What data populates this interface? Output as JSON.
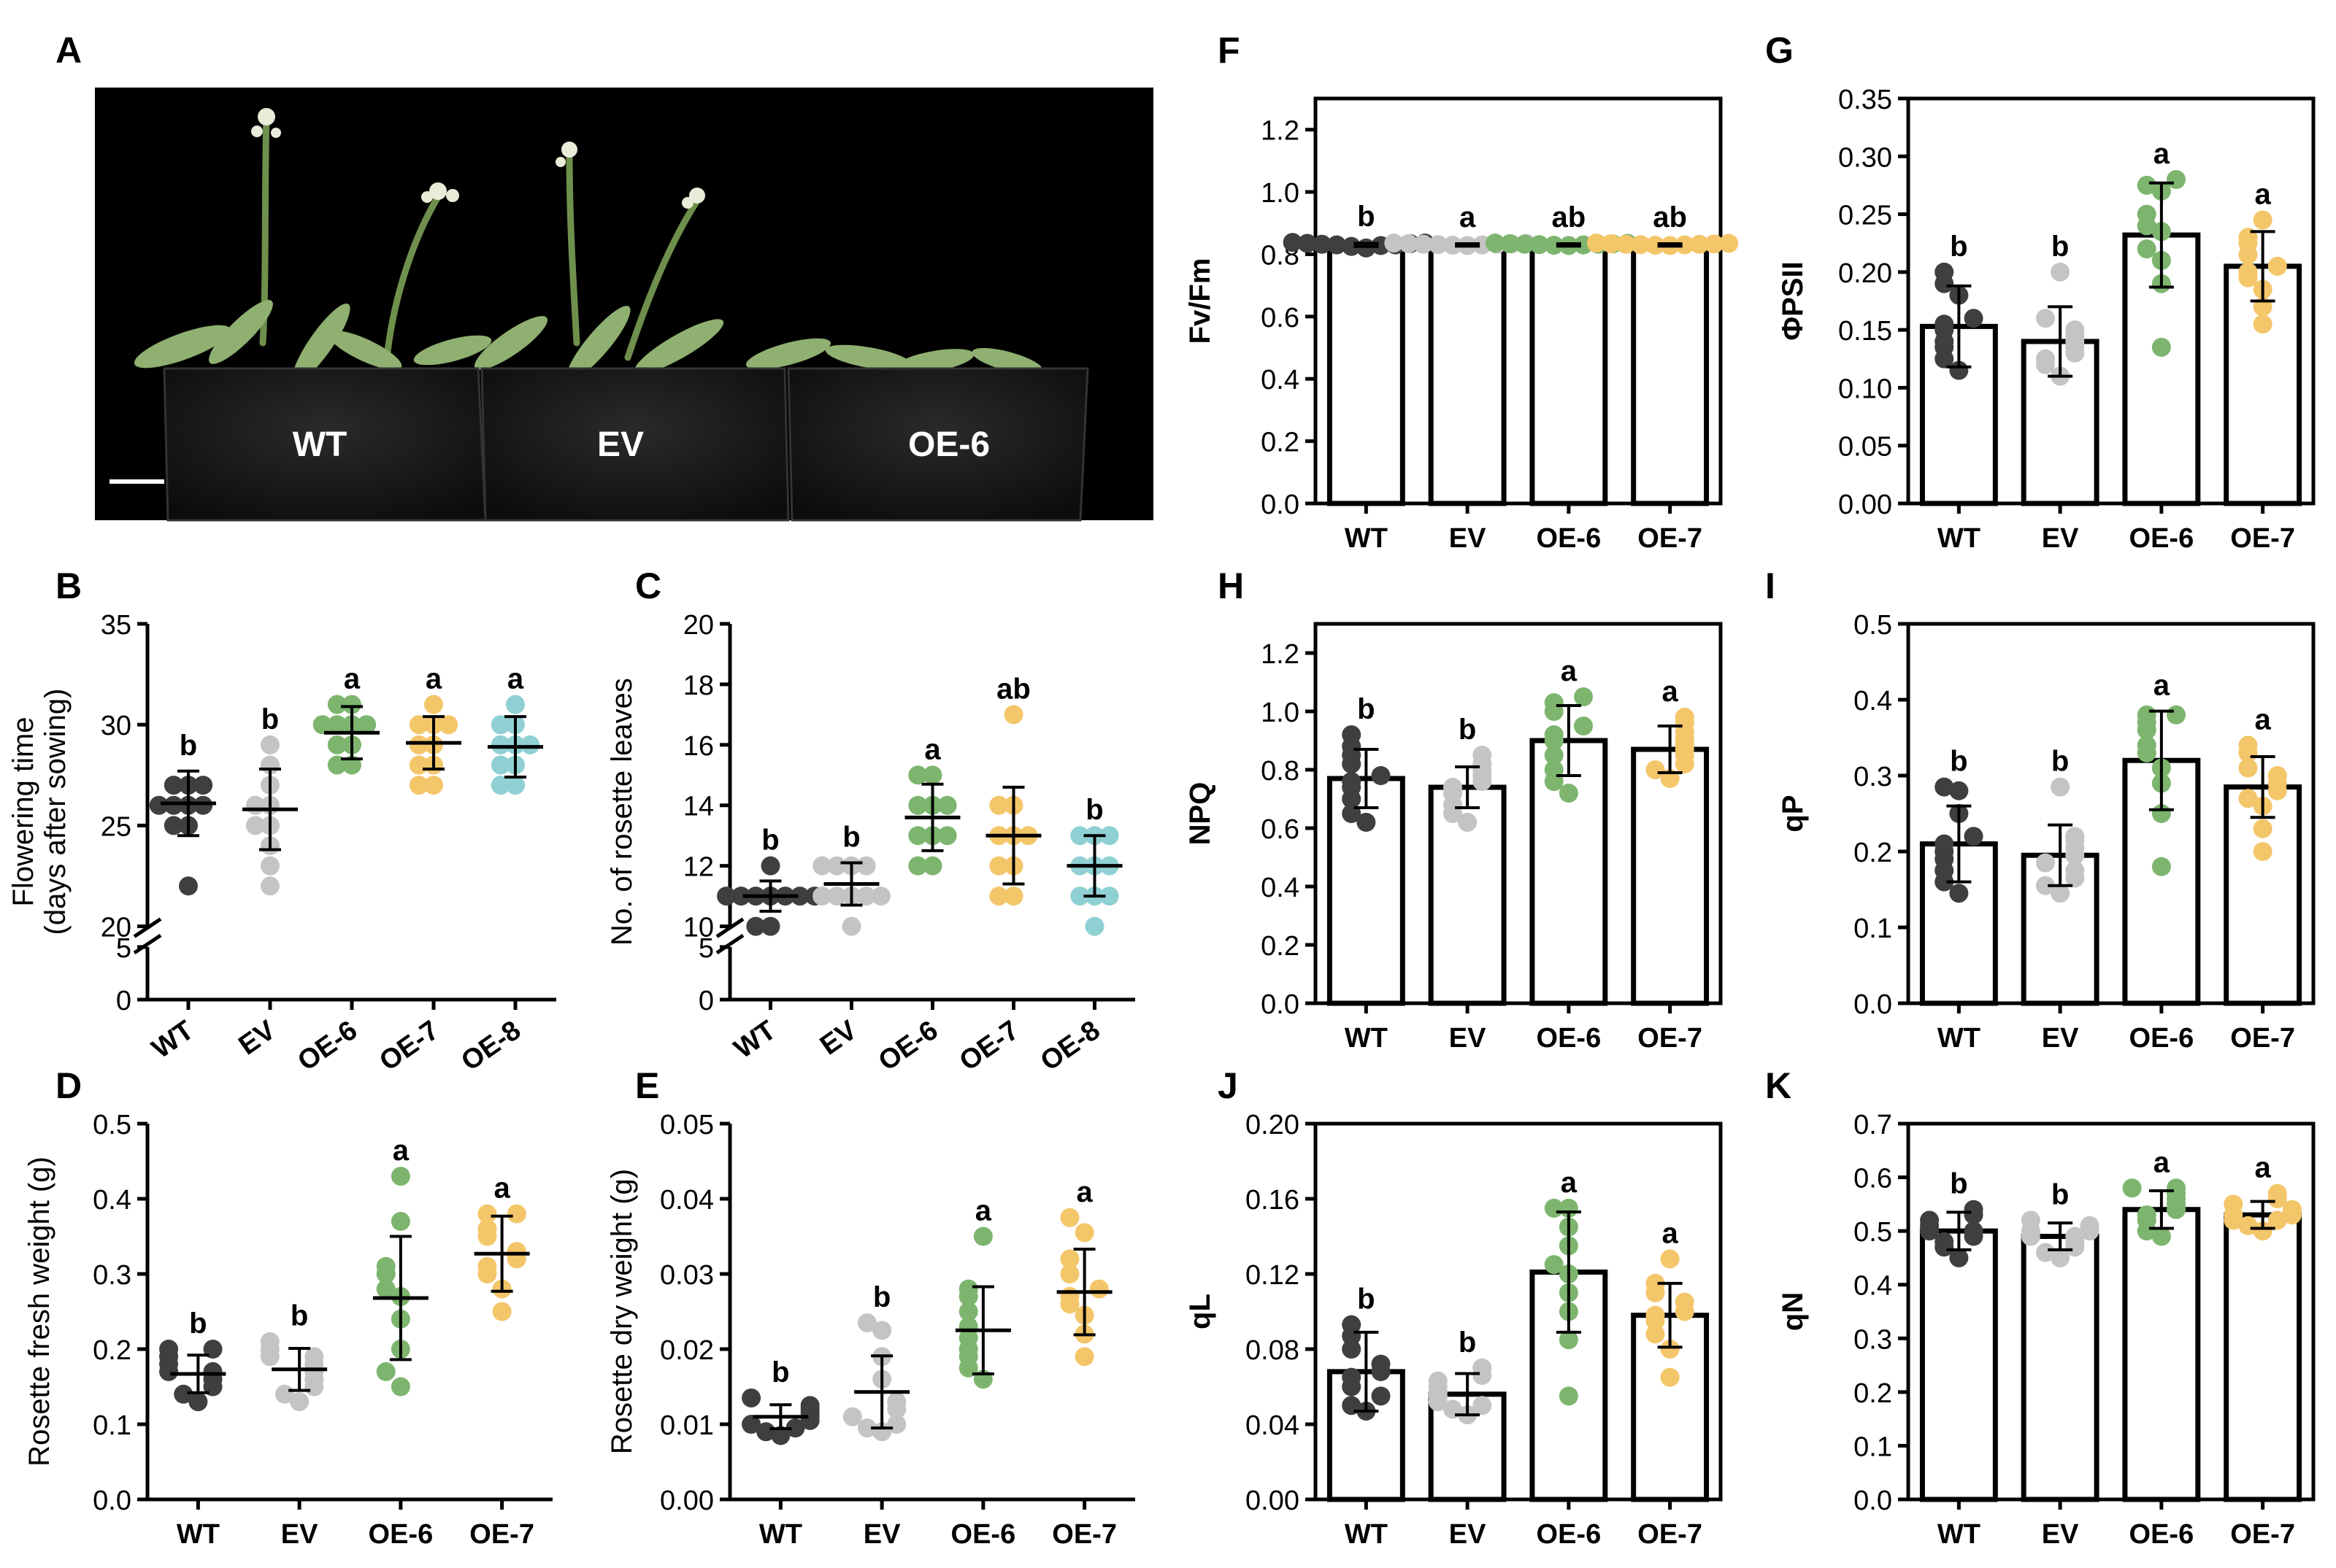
{
  "colors": {
    "WT": "#3f3f3f",
    "EV": "#c4c4c4",
    "OE-6": "#7db56e",
    "OE-7": "#f4c66a",
    "OE-8": "#8fd0d3",
    "axis": "#000000"
  },
  "panel_A": {
    "letter": "A",
    "pot_labels": [
      "WT",
      "EV",
      "OE-6"
    ]
  },
  "chart_data": [
    {
      "id": "B",
      "letter": "B",
      "type": "scatter",
      "ylabel": "Flowering time\n(days after sowing)",
      "categories": [
        "WT",
        "EV",
        "OE-6",
        "OE-7",
        "OE-8"
      ],
      "ytick_labels": [
        "0",
        "5",
        "20",
        "25",
        "30",
        "35"
      ],
      "broken_axis": {
        "lower": [
          0,
          5
        ],
        "upper": [
          20,
          35
        ]
      },
      "means": [
        26.1,
        25.8,
        29.6,
        29.1,
        28.9
      ],
      "sd": [
        1.6,
        2.0,
        1.3,
        1.3,
        1.5
      ],
      "letters": [
        "b",
        "b",
        "a",
        "a",
        "a"
      ],
      "points": [
        [
          22,
          25,
          25,
          26,
          26,
          26,
          26,
          27,
          27,
          27
        ],
        [
          22,
          23,
          24,
          25,
          25,
          26,
          26,
          27,
          28,
          29
        ],
        [
          28,
          28,
          29,
          29,
          30,
          30,
          30,
          30,
          31,
          31
        ],
        [
          27,
          27,
          28,
          28,
          29,
          29,
          30,
          30,
          30,
          31
        ],
        [
          27,
          27,
          28,
          28,
          29,
          29,
          29,
          30,
          30,
          31
        ]
      ]
    },
    {
      "id": "C",
      "letter": "C",
      "type": "scatter",
      "ylabel": "No. of rosette leaves",
      "categories": [
        "WT",
        "EV",
        "OE-6",
        "OE-7",
        "OE-8"
      ],
      "ytick_labels": [
        "0",
        "5",
        "10",
        "12",
        "14",
        "16",
        "18",
        "20"
      ],
      "broken_axis": {
        "lower": [
          0,
          5
        ],
        "upper": [
          10,
          20
        ]
      },
      "means": [
        11.0,
        11.4,
        13.6,
        13.0,
        12.0
      ],
      "sd": [
        0.5,
        0.7,
        1.1,
        1.6,
        1.0
      ],
      "letters": [
        "b",
        "b",
        "a",
        "ab",
        "b"
      ],
      "points": [
        [
          10,
          10,
          11,
          11,
          11,
          11,
          11,
          11,
          11,
          12
        ],
        [
          10,
          11,
          11,
          11,
          11,
          11,
          12,
          12,
          12,
          12
        ],
        [
          12,
          12,
          13,
          13,
          13,
          14,
          14,
          14,
          15,
          15
        ],
        [
          11,
          11,
          12,
          12,
          13,
          13,
          13,
          14,
          14,
          17
        ],
        [
          10,
          11,
          11,
          11,
          12,
          12,
          12,
          13,
          13,
          13
        ]
      ]
    },
    {
      "id": "D",
      "letter": "D",
      "type": "scatter",
      "ylabel": "Rosette fresh weight (g)",
      "categories": [
        "WT",
        "EV",
        "OE-6",
        "OE-7"
      ],
      "ylim": [
        0,
        0.5
      ],
      "yticks": [
        0,
        0.1,
        0.2,
        0.3,
        0.4,
        0.5
      ],
      "ytick_labels": [
        "0.0",
        "0.1",
        "0.2",
        "0.3",
        "0.4",
        "0.5"
      ],
      "means": [
        0.167,
        0.173,
        0.268,
        0.327
      ],
      "sd": [
        0.025,
        0.028,
        0.082,
        0.05
      ],
      "letters": [
        "b",
        "b",
        "a",
        "a"
      ],
      "points": [
        [
          0.13,
          0.14,
          0.15,
          0.16,
          0.17,
          0.17,
          0.18,
          0.19,
          0.2,
          0.2
        ],
        [
          0.13,
          0.14,
          0.15,
          0.16,
          0.17,
          0.18,
          0.19,
          0.19,
          0.2,
          0.21
        ],
        [
          0.15,
          0.17,
          0.2,
          0.24,
          0.27,
          0.28,
          0.3,
          0.31,
          0.37,
          0.43
        ],
        [
          0.25,
          0.28,
          0.3,
          0.31,
          0.32,
          0.33,
          0.35,
          0.36,
          0.38,
          0.38
        ]
      ]
    },
    {
      "id": "E",
      "letter": "E",
      "type": "scatter",
      "ylabel": "Rosette dry weight (g)",
      "categories": [
        "WT",
        "EV",
        "OE-6",
        "OE-7"
      ],
      "ylim": [
        0,
        0.05
      ],
      "yticks": [
        0,
        0.01,
        0.02,
        0.03,
        0.04,
        0.05
      ],
      "ytick_labels": [
        "0.00",
        "0.01",
        "0.02",
        "0.03",
        "0.04",
        "0.05"
      ],
      "means": [
        0.011,
        0.0143,
        0.0225,
        0.0276
      ],
      "sd": [
        0.0016,
        0.0048,
        0.0058,
        0.0057
      ],
      "letters": [
        "b",
        "b",
        "a",
        "a"
      ],
      "points": [
        [
          0.0085,
          0.009,
          0.0095,
          0.01,
          0.0105,
          0.011,
          0.0115,
          0.012,
          0.0125,
          0.0135
        ],
        [
          0.009,
          0.0095,
          0.01,
          0.011,
          0.012,
          0.013,
          0.016,
          0.019,
          0.0225,
          0.0235
        ],
        [
          0.016,
          0.0175,
          0.019,
          0.02,
          0.0215,
          0.023,
          0.025,
          0.027,
          0.028,
          0.035
        ],
        [
          0.019,
          0.022,
          0.0245,
          0.026,
          0.027,
          0.028,
          0.03,
          0.032,
          0.0355,
          0.0375
        ]
      ]
    },
    {
      "id": "F",
      "letter": "F",
      "type": "bar",
      "ylabel": "Fv/Fm",
      "categories": [
        "WT",
        "EV",
        "OE-6",
        "OE-7"
      ],
      "ylim": [
        0,
        1.3
      ],
      "yticks": [
        0,
        0.2,
        0.4,
        0.6,
        0.8,
        1.0,
        1.2
      ],
      "ytick_labels": [
        "0.0",
        "0.2",
        "0.4",
        "0.6",
        "0.8",
        "1.0",
        "1.2"
      ],
      "means": [
        0.83,
        0.83,
        0.83,
        0.83
      ],
      "sd": [
        0.005,
        0.004,
        0.004,
        0.004
      ],
      "letters": [
        "b",
        "a",
        "ab",
        "ab"
      ],
      "points": [
        [
          0.82,
          0.825,
          0.828,
          0.83,
          0.83,
          0.832,
          0.834,
          0.835,
          0.836,
          0.838
        ],
        [
          0.828,
          0.829,
          0.83,
          0.831,
          0.832,
          0.832,
          0.833,
          0.834,
          0.835,
          0.836
        ],
        [
          0.828,
          0.829,
          0.83,
          0.831,
          0.832,
          0.832,
          0.833,
          0.834,
          0.835,
          0.836
        ],
        [
          0.828,
          0.829,
          0.83,
          0.831,
          0.832,
          0.832,
          0.833,
          0.834,
          0.835,
          0.836
        ]
      ]
    },
    {
      "id": "G",
      "letter": "G",
      "type": "bar",
      "ylabel": "ΦPSII",
      "categories": [
        "WT",
        "EV",
        "OE-6",
        "OE-7"
      ],
      "ylim": [
        0,
        0.35
      ],
      "yticks": [
        0,
        0.05,
        0.1,
        0.15,
        0.2,
        0.25,
        0.3,
        0.35
      ],
      "ytick_labels": [
        "0.00",
        "0.05",
        "0.10",
        "0.15",
        "0.20",
        "0.25",
        "0.30",
        "0.35"
      ],
      "means": [
        0.153,
        0.14,
        0.232,
        0.205
      ],
      "sd": [
        0.035,
        0.03,
        0.045,
        0.03
      ],
      "letters": [
        "b",
        "b",
        "a",
        "a"
      ],
      "points": [
        [
          0.115,
          0.125,
          0.135,
          0.14,
          0.15,
          0.155,
          0.16,
          0.18,
          0.19,
          0.2
        ],
        [
          0.11,
          0.12,
          0.125,
          0.13,
          0.135,
          0.14,
          0.145,
          0.15,
          0.16,
          0.2
        ],
        [
          0.135,
          0.19,
          0.21,
          0.22,
          0.235,
          0.24,
          0.25,
          0.27,
          0.275,
          0.28
        ],
        [
          0.155,
          0.17,
          0.185,
          0.195,
          0.2,
          0.205,
          0.215,
          0.225,
          0.23,
          0.245
        ]
      ]
    },
    {
      "id": "H",
      "letter": "H",
      "type": "bar",
      "ylabel": "NPQ",
      "categories": [
        "WT",
        "EV",
        "OE-6",
        "OE-7"
      ],
      "ylim": [
        0,
        1.3
      ],
      "yticks": [
        0,
        0.2,
        0.4,
        0.6,
        0.8,
        1.0,
        1.2
      ],
      "ytick_labels": [
        "0.0",
        "0.2",
        "0.4",
        "0.6",
        "0.8",
        "1.0",
        "1.2"
      ],
      "means": [
        0.77,
        0.74,
        0.9,
        0.87
      ],
      "sd": [
        0.1,
        0.07,
        0.12,
        0.08
      ],
      "letters": [
        "b",
        "b",
        "a",
        "a"
      ],
      "points": [
        [
          0.62,
          0.65,
          0.7,
          0.74,
          0.76,
          0.78,
          0.82,
          0.85,
          0.88,
          0.92
        ],
        [
          0.62,
          0.65,
          0.68,
          0.72,
          0.74,
          0.76,
          0.78,
          0.8,
          0.82,
          0.85
        ],
        [
          0.72,
          0.76,
          0.8,
          0.85,
          0.9,
          0.92,
          0.95,
          1.0,
          1.03,
          1.05
        ],
        [
          0.77,
          0.8,
          0.82,
          0.85,
          0.87,
          0.89,
          0.91,
          0.93,
          0.96,
          0.98
        ]
      ]
    },
    {
      "id": "I",
      "letter": "I",
      "type": "bar",
      "ylabel": "qP",
      "categories": [
        "WT",
        "EV",
        "OE-6",
        "OE-7"
      ],
      "ylim": [
        0,
        0.5
      ],
      "yticks": [
        0,
        0.1,
        0.2,
        0.3,
        0.4,
        0.5
      ],
      "ytick_labels": [
        "0.0",
        "0.1",
        "0.2",
        "0.3",
        "0.4",
        "0.5"
      ],
      "means": [
        0.21,
        0.195,
        0.32,
        0.285
      ],
      "sd": [
        0.05,
        0.04,
        0.065,
        0.04
      ],
      "letters": [
        "b",
        "b",
        "a",
        "a"
      ],
      "points": [
        [
          0.145,
          0.16,
          0.175,
          0.19,
          0.2,
          0.21,
          0.22,
          0.25,
          0.28,
          0.285
        ],
        [
          0.145,
          0.155,
          0.165,
          0.175,
          0.185,
          0.195,
          0.205,
          0.215,
          0.22,
          0.285
        ],
        [
          0.18,
          0.25,
          0.29,
          0.31,
          0.33,
          0.34,
          0.36,
          0.37,
          0.38,
          0.38
        ],
        [
          0.2,
          0.23,
          0.26,
          0.27,
          0.28,
          0.29,
          0.3,
          0.31,
          0.33,
          0.34
        ]
      ]
    },
    {
      "id": "J",
      "letter": "J",
      "type": "bar",
      "ylabel": "qL",
      "categories": [
        "WT",
        "EV",
        "OE-6",
        "OE-7"
      ],
      "ylim": [
        0,
        0.2
      ],
      "yticks": [
        0,
        0.04,
        0.08,
        0.12,
        0.16,
        0.2
      ],
      "ytick_labels": [
        "0.00",
        "0.04",
        "0.08",
        "0.12",
        "0.16",
        "0.20"
      ],
      "means": [
        0.068,
        0.056,
        0.121,
        0.098
      ],
      "sd": [
        0.021,
        0.011,
        0.032,
        0.017
      ],
      "letters": [
        "b",
        "b",
        "a",
        "a"
      ],
      "points": [
        [
          0.047,
          0.05,
          0.055,
          0.06,
          0.065,
          0.068,
          0.072,
          0.08,
          0.087,
          0.093
        ],
        [
          0.045,
          0.048,
          0.05,
          0.052,
          0.055,
          0.057,
          0.06,
          0.063,
          0.066,
          0.07
        ],
        [
          0.055,
          0.085,
          0.1,
          0.11,
          0.12,
          0.125,
          0.135,
          0.145,
          0.155,
          0.155
        ],
        [
          0.065,
          0.08,
          0.088,
          0.095,
          0.098,
          0.1,
          0.105,
          0.11,
          0.115,
          0.128
        ]
      ]
    },
    {
      "id": "K",
      "letter": "K",
      "type": "bar",
      "ylabel": "qN",
      "categories": [
        "WT",
        "EV",
        "OE-6",
        "OE-7"
      ],
      "ylim": [
        0,
        0.7
      ],
      "yticks": [
        0,
        0.1,
        0.2,
        0.3,
        0.4,
        0.5,
        0.6,
        0.7
      ],
      "ytick_labels": [
        "0.0",
        "0.1",
        "0.2",
        "0.3",
        "0.4",
        "0.5",
        "0.6",
        "0.7"
      ],
      "means": [
        0.5,
        0.49,
        0.54,
        0.53
      ],
      "sd": [
        0.035,
        0.025,
        0.035,
        0.025
      ],
      "letters": [
        "b",
        "b",
        "a",
        "a"
      ],
      "points": [
        [
          0.45,
          0.47,
          0.48,
          0.49,
          0.5,
          0.5,
          0.51,
          0.52,
          0.53,
          0.54
        ],
        [
          0.45,
          0.46,
          0.47,
          0.48,
          0.49,
          0.49,
          0.5,
          0.5,
          0.51,
          0.52
        ],
        [
          0.49,
          0.5,
          0.52,
          0.53,
          0.54,
          0.55,
          0.56,
          0.57,
          0.58,
          0.58
        ],
        [
          0.5,
          0.51,
          0.52,
          0.52,
          0.53,
          0.53,
          0.54,
          0.55,
          0.56,
          0.57
        ]
      ]
    }
  ]
}
